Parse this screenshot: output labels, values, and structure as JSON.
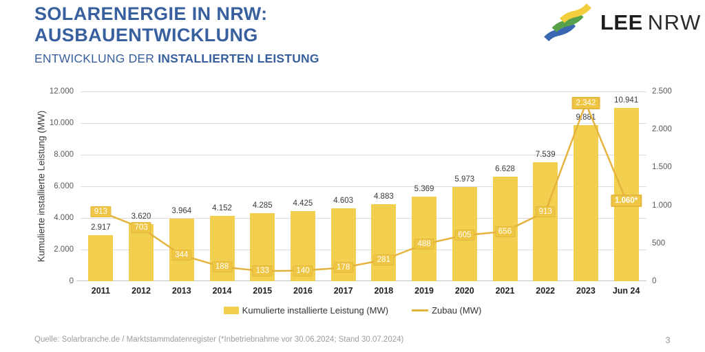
{
  "header": {
    "title_line1": "SOLARENERGIE IN NRW:",
    "title_line2": "AUSBAUENTWICKLUNG",
    "subtitle_regular": "ENTWICKLUNG DER ",
    "subtitle_bold": "INSTALLIERTEN LEISTUNG",
    "title_color": "#38609E"
  },
  "logo": {
    "text_bold": "LEE",
    "text_light": "NRW",
    "stripe_colors": {
      "yellow": "#F2CE3E",
      "green": "#57A14B",
      "blue": "#3A67B1"
    }
  },
  "chart_data": {
    "type": "combo",
    "categories": [
      "2011",
      "2012",
      "2013",
      "2014",
      "2015",
      "2016",
      "2017",
      "2018",
      "2019",
      "2020",
      "2021",
      "2022",
      "2023",
      "Jun 24"
    ],
    "series": [
      {
        "name": "Kumulierte installierte Leistung (MW)",
        "type": "bar",
        "axis": "left",
        "color": "#F2CF4E",
        "values": [
          2917,
          3620,
          3964,
          4152,
          4285,
          4425,
          4603,
          4883,
          5369,
          5973,
          6628,
          7539,
          9881,
          10941
        ],
        "labels": [
          "2.917",
          "3.620",
          "3.964",
          "4.152",
          "4.285",
          "4.425",
          "4.603",
          "4.883",
          "5.369",
          "5.973",
          "6.628",
          "7.539",
          "9.881",
          "10.941"
        ]
      },
      {
        "name": "Zubau (MW)",
        "type": "line",
        "axis": "right",
        "color": "#E3B33D",
        "label_box_fill": "#EFC544",
        "label_box_border": "#E4B83F",
        "values": [
          913,
          703,
          344,
          188,
          133,
          140,
          178,
          281,
          488,
          605,
          656,
          913,
          2342,
          1060
        ],
        "labels": [
          "913",
          "703",
          "344",
          "188",
          "133",
          "140",
          "178",
          "281",
          "488",
          "605",
          "656",
          "913",
          "2.342",
          "1.060*"
        ],
        "white_border_indices": [
          12,
          13
        ],
        "bold_indices": [
          13
        ]
      }
    ],
    "left_axis": {
      "title": "Kumulierte installierte Leistung (MW)",
      "min": 0,
      "max": 12000,
      "step": 2000,
      "tick_labels": [
        "0",
        "2.000",
        "4.000",
        "6.000",
        "8.000",
        "10.000",
        "12.000"
      ]
    },
    "right_axis": {
      "min": 0,
      "max": 2500,
      "step": 500,
      "tick_labels": [
        "0",
        "500",
        "1.000",
        "1.500",
        "2.000",
        "2.500"
      ]
    },
    "grid": true,
    "legend_position": "bottom"
  },
  "footer": {
    "source": "Quelle: Solarbranche.de / Marktstammdatenregister (*Inbetriebnahme vor 30.06.2024; Stand 30.07.2024)",
    "page_number": "3"
  }
}
